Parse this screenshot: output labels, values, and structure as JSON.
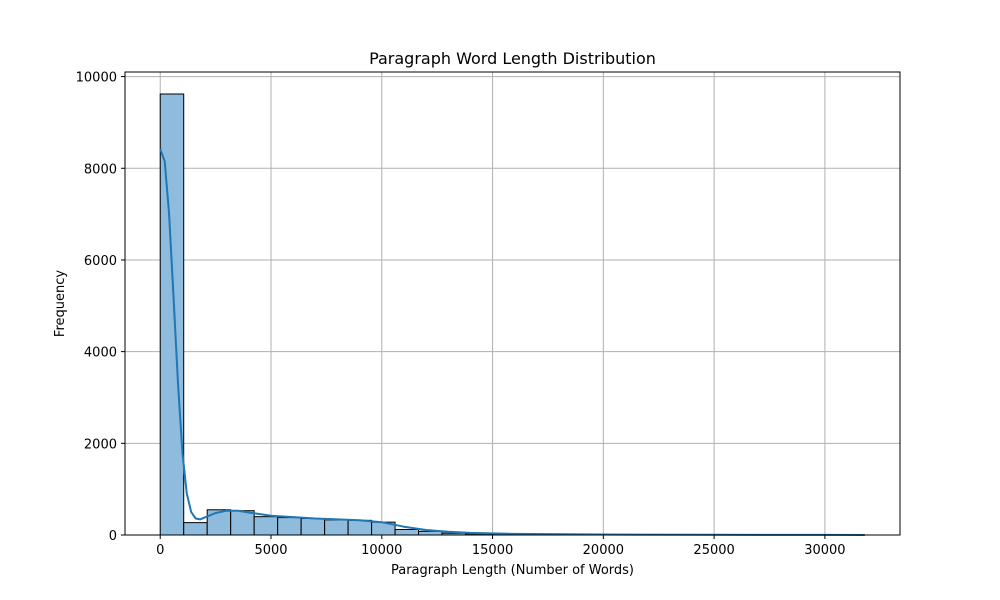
{
  "chart_data": {
    "type": "bar",
    "title": "Paragraph Word Length Distribution",
    "xlabel": "Paragraph Length (Number of Words)",
    "ylabel": "Frequency",
    "xlim": [
      -1590,
      33390
    ],
    "ylim": [
      0,
      10100
    ],
    "xticks": [
      0,
      5000,
      10000,
      15000,
      20000,
      25000,
      30000
    ],
    "yticks": [
      0,
      2000,
      4000,
      6000,
      8000,
      10000
    ],
    "grid": true,
    "bin_width": 1060,
    "bins_start": 0,
    "bin_counts": [
      9620,
      270,
      550,
      530,
      400,
      380,
      360,
      330,
      320,
      280,
      120,
      80,
      40,
      25,
      15,
      10,
      8,
      6,
      5,
      4,
      3,
      3,
      2,
      2,
      2,
      1,
      1,
      1,
      1,
      1
    ],
    "kde": {
      "x": [
        0,
        200,
        400,
        600,
        800,
        1000,
        1200,
        1400,
        1600,
        1800,
        2000,
        2500,
        3000,
        3500,
        4000,
        5000,
        6000,
        7000,
        8000,
        9000,
        10000,
        11000,
        12000,
        13000,
        14000,
        16000,
        20000,
        25000,
        30000,
        31800
      ],
      "y": [
        8420,
        8150,
        7000,
        5200,
        3300,
        1800,
        900,
        500,
        360,
        340,
        380,
        480,
        530,
        530,
        490,
        420,
        390,
        360,
        340,
        320,
        280,
        180,
        110,
        70,
        45,
        25,
        10,
        5,
        2,
        1
      ]
    },
    "colors": {
      "bar_fill": "#8fbbdc",
      "bar_edge": "#000000",
      "kde_line": "#1f77b4",
      "grid": "#b0b0b0"
    }
  }
}
